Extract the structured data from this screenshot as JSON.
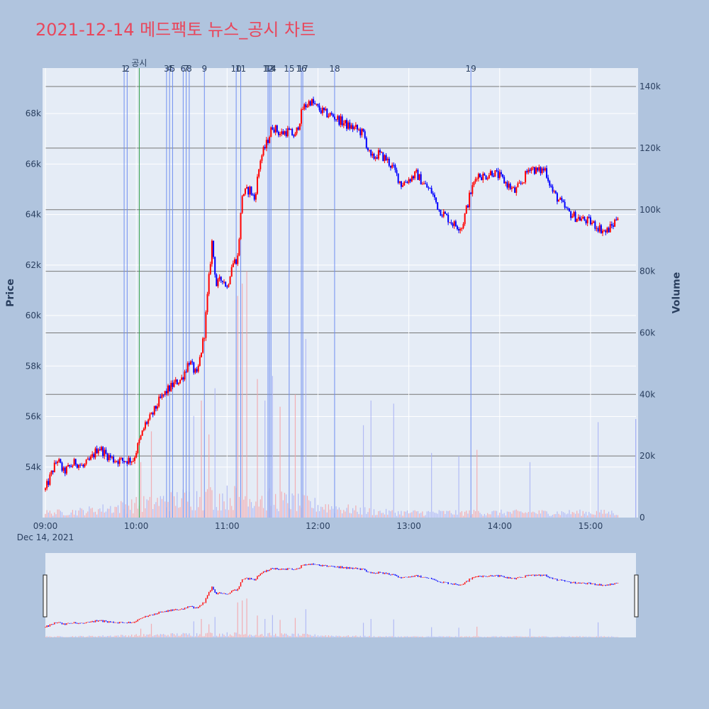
{
  "title": "2021-12-14 메드팩토 뉴스_공시 차트",
  "colors": {
    "background": "#b0c4de",
    "plot_bg": "#e5ecf6",
    "title": "#e8475c",
    "up": "#ff0000",
    "down": "#0000ff",
    "news_line": "#6f8ef0",
    "disclosure_line": "#2e9e44"
  },
  "chart_data": {
    "type": "candlestick",
    "title": "2021-12-14 메드팩토 뉴스_공시 차트",
    "ylabel": "Price",
    "y2label": "Volume",
    "x_ticks": [
      {
        "t": "09:00",
        "label": "09:00",
        "sub": "Dec 14, 2021"
      },
      {
        "t": "10:00",
        "label": "10:00"
      },
      {
        "t": "11:00",
        "label": "11:00"
      },
      {
        "t": "12:00",
        "label": "12:00"
      },
      {
        "t": "13:00",
        "label": "13:00"
      },
      {
        "t": "14:00",
        "label": "14:00"
      },
      {
        "t": "15:00",
        "label": "15:00"
      }
    ],
    "y_ticks": [
      "54k",
      "56k",
      "58k",
      "60k",
      "62k",
      "64k",
      "66k",
      "68k"
    ],
    "y_tick_values": [
      54000,
      56000,
      58000,
      60000,
      62000,
      64000,
      66000,
      68000
    ],
    "y2_ticks": [
      "0",
      "20k",
      "40k",
      "60k",
      "80k",
      "100k",
      "120k",
      "140k"
    ],
    "y2_tick_values": [
      0,
      20000,
      40000,
      60000,
      80000,
      100000,
      120000,
      140000
    ],
    "x_range": [
      "09:00",
      "15:30"
    ],
    "y_range": [
      52000,
      69800
    ],
    "y2_range": [
      0,
      146000
    ],
    "price_path": [
      [
        "09:00",
        53100
      ],
      [
        "09:05",
        53900
      ],
      [
        "09:08",
        54300
      ],
      [
        "09:12",
        53800
      ],
      [
        "09:20",
        54200
      ],
      [
        "09:25",
        54000
      ],
      [
        "09:30",
        54300
      ],
      [
        "09:35",
        54800
      ],
      [
        "09:40",
        54500
      ],
      [
        "09:45",
        54300
      ],
      [
        "09:50",
        54250
      ],
      [
        "09:58",
        54300
      ],
      [
        "10:02",
        55000
      ],
      [
        "10:06",
        55700
      ],
      [
        "10:10",
        56000
      ],
      [
        "10:15",
        56600
      ],
      [
        "10:20",
        57000
      ],
      [
        "10:25",
        57300
      ],
      [
        "10:30",
        57500
      ],
      [
        "10:35",
        58200
      ],
      [
        "10:40",
        57600
      ],
      [
        "10:45",
        59300
      ],
      [
        "10:50",
        62900
      ],
      [
        "10:53",
        61200
      ],
      [
        "10:57",
        61500
      ],
      [
        "11:00",
        61100
      ],
      [
        "11:03",
        62000
      ],
      [
        "11:07",
        62300
      ],
      [
        "11:10",
        64800
      ],
      [
        "11:15",
        65000
      ],
      [
        "11:18",
        64600
      ],
      [
        "11:22",
        66200
      ],
      [
        "11:26",
        66800
      ],
      [
        "11:30",
        67500
      ],
      [
        "11:35",
        67200
      ],
      [
        "11:40",
        67300
      ],
      [
        "11:45",
        67100
      ],
      [
        "11:50",
        68200
      ],
      [
        "11:55",
        68500
      ],
      [
        "12:00",
        68200
      ],
      [
        "12:05",
        68000
      ],
      [
        "12:10",
        67900
      ],
      [
        "12:15",
        67700
      ],
      [
        "12:20",
        67500
      ],
      [
        "12:25",
        67400
      ],
      [
        "12:30",
        67200
      ],
      [
        "12:35",
        66200
      ],
      [
        "12:40",
        66400
      ],
      [
        "12:45",
        66200
      ],
      [
        "12:50",
        65800
      ],
      [
        "12:55",
        65200
      ],
      [
        "13:00",
        65400
      ],
      [
        "13:05",
        65600
      ],
      [
        "13:10",
        65200
      ],
      [
        "13:15",
        64900
      ],
      [
        "13:20",
        64200
      ],
      [
        "13:25",
        63900
      ],
      [
        "13:30",
        63600
      ],
      [
        "13:35",
        63500
      ],
      [
        "13:40",
        64700
      ],
      [
        "13:45",
        65600
      ],
      [
        "13:50",
        65500
      ],
      [
        "13:55",
        65700
      ],
      [
        "14:00",
        65500
      ],
      [
        "14:05",
        65200
      ],
      [
        "14:10",
        64900
      ],
      [
        "14:15",
        65300
      ],
      [
        "14:20",
        65900
      ],
      [
        "14:25",
        65700
      ],
      [
        "14:30",
        65800
      ],
      [
        "14:35",
        64900
      ],
      [
        "14:40",
        64500
      ],
      [
        "14:45",
        64100
      ],
      [
        "14:50",
        63900
      ],
      [
        "14:55",
        63800
      ],
      [
        "15:00",
        63700
      ],
      [
        "15:05",
        63500
      ],
      [
        "15:10",
        63300
      ],
      [
        "15:15",
        63600
      ],
      [
        "15:18",
        64000
      ]
    ],
    "volume_bursts": [
      [
        "10:03",
        18000
      ],
      [
        "10:10",
        28000
      ],
      [
        "10:38",
        33000
      ],
      [
        "10:43",
        38000
      ],
      [
        "10:48",
        27000
      ],
      [
        "10:52",
        42000
      ],
      [
        "11:07",
        72000
      ],
      [
        "11:10",
        76000
      ],
      [
        "11:13",
        80000
      ],
      [
        "11:20",
        45000
      ],
      [
        "11:25",
        38000
      ],
      [
        "11:30",
        46000
      ],
      [
        "11:35",
        36000
      ],
      [
        "11:45",
        40000
      ],
      [
        "11:52",
        58000
      ],
      [
        "12:30",
        30000
      ],
      [
        "12:35",
        38000
      ],
      [
        "12:50",
        37000
      ],
      [
        "13:15",
        21000
      ],
      [
        "13:33",
        20000
      ],
      [
        "13:45",
        22000
      ],
      [
        "14:20",
        18000
      ],
      [
        "15:05",
        31000
      ],
      [
        "15:20",
        23000
      ],
      [
        "15:28",
        32000
      ]
    ],
    "event_markers": [
      {
        "t": "09:52",
        "label": "1"
      },
      {
        "t": "09:54",
        "label": "2"
      },
      {
        "t": "10:20",
        "label": "3"
      },
      {
        "t": "10:22",
        "label": "4"
      },
      {
        "t": "10:24",
        "label": "5"
      },
      {
        "t": "10:31",
        "label": "6"
      },
      {
        "t": "10:33",
        "label": "7"
      },
      {
        "t": "10:35",
        "label": "8"
      },
      {
        "t": "10:45",
        "label": "9"
      },
      {
        "t": "11:06",
        "label": "10"
      },
      {
        "t": "11:09",
        "label": "11"
      },
      {
        "t": "11:27",
        "label": "12"
      },
      {
        "t": "11:28",
        "label": "13"
      },
      {
        "t": "11:29",
        "label": "14"
      },
      {
        "t": "11:41",
        "label": "15"
      },
      {
        "t": "11:49",
        "label": "16"
      },
      {
        "t": "11:50",
        "label": "17"
      },
      {
        "t": "12:11",
        "label": "18"
      },
      {
        "t": "13:41",
        "label": "19"
      }
    ],
    "disclosure_marker": {
      "t": "10:02",
      "label": "공시"
    }
  }
}
